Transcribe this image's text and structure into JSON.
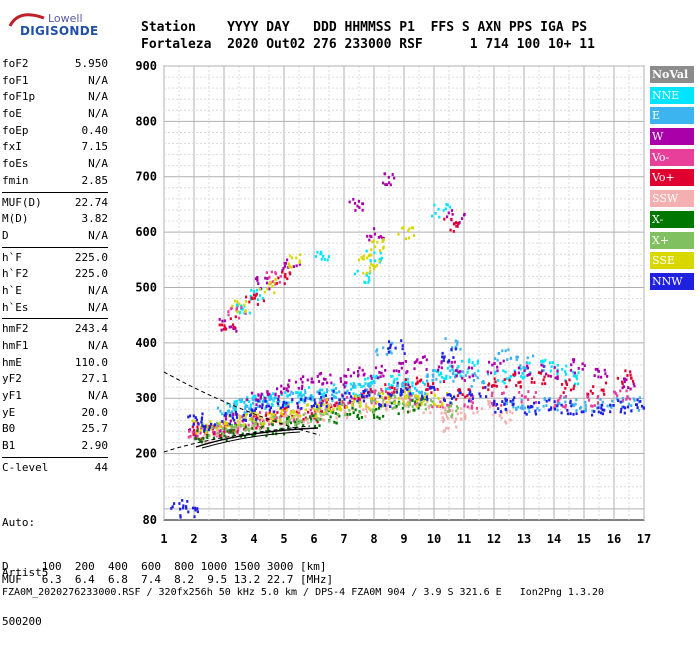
{
  "logo": {
    "line1": "Lowell",
    "line2": "DIGISONDE"
  },
  "header": {
    "row1": "Station    YYYY DAY   DDD HHMMSS P1  FFS S AXN PPS IGA PS",
    "row2": "Fortaleza  2020 Out02 276 233000 RSF      1 714 100 10+ 11"
  },
  "params": [
    {
      "label": "foF2",
      "value": "5.950"
    },
    {
      "label": "foF1",
      "value": "N/A"
    },
    {
      "label": "foF1p",
      "value": "N/A"
    },
    {
      "label": "foE",
      "value": "N/A"
    },
    {
      "label": "foEp",
      "value": "0.40"
    },
    {
      "label": "fxI",
      "value": "7.15"
    },
    {
      "label": "foEs",
      "value": "N/A"
    },
    {
      "label": "fmin",
      "value": "2.85"
    },
    {
      "label": "MUF(D)",
      "value": "22.74"
    },
    {
      "label": "M(D)",
      "value": "3.82"
    },
    {
      "label": "D",
      "value": "N/A"
    },
    {
      "label": "h`F",
      "value": "225.0"
    },
    {
      "label": "h`F2",
      "value": "225.0"
    },
    {
      "label": "h`E",
      "value": "N/A"
    },
    {
      "label": "h`Es",
      "value": "N/A"
    },
    {
      "label": "hmF2",
      "value": "243.4"
    },
    {
      "label": "hmF1",
      "value": "N/A"
    },
    {
      "label": "hmE",
      "value": "110.0"
    },
    {
      "label": "yF2",
      "value": "27.1"
    },
    {
      "label": "yF1",
      "value": "N/A"
    },
    {
      "label": "yE",
      "value": "20.0"
    },
    {
      "label": "B0",
      "value": "25.7"
    },
    {
      "label": "B1",
      "value": "2.90"
    },
    {
      "label": "C-level",
      "value": "44"
    }
  ],
  "auto": [
    "Auto:",
    "Artist5",
    "500200"
  ],
  "legend": [
    {
      "label": "NoVal",
      "color": "#8c8c8c"
    },
    {
      "label": "NNE",
      "color": "#00e5ff"
    },
    {
      "label": "E",
      "color": "#3cb4f0"
    },
    {
      "label": "W",
      "color": "#aa00aa"
    },
    {
      "label": "Vo-",
      "color": "#e8409a"
    },
    {
      "label": "Vo+",
      "color": "#e00030"
    },
    {
      "label": "SSW",
      "color": "#f4b0b0"
    },
    {
      "label": "X-",
      "color": "#007800"
    },
    {
      "label": "X+",
      "color": "#80c060"
    },
    {
      "label": "SSE",
      "color": "#d8d800"
    },
    {
      "label": "NNW",
      "color": "#2020e0"
    }
  ],
  "footer": {
    "row1": "D     100  200  400  600  800 1000 1500 3000 [km]",
    "row2": "MUF   6.3  6.4  6.8  7.4  8.2  9.5 13.2 22.7 [MHz]",
    "row3": "FZA0M_2020276233000.RSF / 320fx256h 50 kHz 5.0 km / DPS-4 FZA0M 904 / 3.9 S 321.6 E   Ion2Png 1.3.20"
  },
  "chart_data": {
    "type": "scatter",
    "x_ticks": [
      1,
      2,
      3,
      4,
      5,
      6,
      7,
      8,
      9,
      10,
      11,
      12,
      13,
      14,
      15,
      16,
      17
    ],
    "y_ticks": [
      80,
      200,
      300,
      400,
      500,
      600,
      700,
      800,
      900
    ],
    "xlim": [
      1,
      17
    ],
    "ylim": [
      80,
      900
    ],
    "grid": true,
    "legend_position": "right",
    "series": [
      {
        "name": "NNE",
        "color": "#00e5ff",
        "points": [
          [
            3.2,
            285
          ],
          [
            3.6,
            292
          ],
          [
            4.0,
            298
          ],
          [
            4.4,
            301
          ],
          [
            4.8,
            300
          ],
          [
            5.3,
            306
          ],
          [
            5.8,
            310
          ],
          [
            6.4,
            315
          ],
          [
            7.2,
            320
          ],
          [
            7.8,
            330
          ],
          [
            8.3,
            330
          ],
          [
            8.8,
            335
          ],
          [
            9.3,
            320
          ],
          [
            10.1,
            350
          ],
          [
            10.6,
            350
          ],
          [
            11.2,
            360
          ],
          [
            12.2,
            340
          ],
          [
            12.8,
            345
          ],
          [
            13.4,
            360
          ],
          [
            14.1,
            355
          ],
          [
            14.6,
            340
          ],
          [
            10.2,
            640
          ],
          [
            8.0,
            560
          ],
          [
            7.6,
            520
          ],
          [
            6.2,
            560
          ],
          [
            3.6,
            460
          ],
          [
            4.1,
            490
          ]
        ]
      },
      {
        "name": "E",
        "color": "#3cb4f0",
        "points": [
          [
            3.0,
            280
          ],
          [
            3.6,
            288
          ],
          [
            4.2,
            295
          ],
          [
            4.8,
            298
          ],
          [
            5.4,
            302
          ],
          [
            6.0,
            305
          ],
          [
            6.6,
            310
          ],
          [
            7.3,
            315
          ],
          [
            8.0,
            318
          ],
          [
            8.7,
            322
          ],
          [
            9.4,
            315
          ],
          [
            10.0,
            340
          ],
          [
            10.8,
            345
          ],
          [
            11.5,
            335
          ],
          [
            12.6,
            290
          ],
          [
            13.2,
            285
          ],
          [
            13.9,
            290
          ],
          [
            14.6,
            292
          ],
          [
            15.3,
            288
          ],
          [
            16.0,
            290
          ],
          [
            16.6,
            292
          ],
          [
            8.3,
            390
          ],
          [
            10.6,
            400
          ],
          [
            12.3,
            380
          ],
          [
            13.0,
            370
          ]
        ]
      },
      {
        "name": "W",
        "color": "#aa00aa",
        "points": [
          [
            2.1,
            245
          ],
          [
            2.7,
            252
          ],
          [
            3.3,
            262
          ],
          [
            3.9,
            300
          ],
          [
            4.5,
            310
          ],
          [
            5.1,
            322
          ],
          [
            5.6,
            330
          ],
          [
            6.2,
            340
          ],
          [
            6.8,
            335
          ],
          [
            7.4,
            345
          ],
          [
            8.1,
            350
          ],
          [
            8.8,
            360
          ],
          [
            9.6,
            365
          ],
          [
            10.4,
            365
          ],
          [
            11.0,
            345
          ],
          [
            12.0,
            360
          ],
          [
            12.9,
            355
          ],
          [
            13.8,
            350
          ],
          [
            14.8,
            360
          ],
          [
            15.6,
            345
          ],
          [
            16.5,
            330
          ],
          [
            3.1,
            435
          ],
          [
            4.2,
            510
          ],
          [
            5.2,
            540
          ],
          [
            8.0,
            600
          ],
          [
            10.7,
            630
          ],
          [
            7.4,
            650
          ],
          [
            8.4,
            700
          ]
        ]
      },
      {
        "name": "Vo-",
        "color": "#e8409a",
        "points": [
          [
            2.0,
            238
          ],
          [
            2.6,
            245
          ],
          [
            3.2,
            250
          ],
          [
            3.8,
            258
          ],
          [
            4.4,
            265
          ],
          [
            5.0,
            270
          ],
          [
            5.7,
            280
          ],
          [
            6.4,
            290
          ],
          [
            7.0,
            300
          ],
          [
            7.8,
            305
          ],
          [
            8.5,
            310
          ],
          [
            9.2,
            300
          ],
          [
            10.2,
            290
          ],
          [
            11.1,
            295
          ],
          [
            12.1,
            300
          ],
          [
            13.1,
            305
          ],
          [
            14.2,
            295
          ],
          [
            15.2,
            300
          ],
          [
            16.2,
            305
          ],
          [
            3.4,
            455
          ],
          [
            4.6,
            520
          ]
        ]
      },
      {
        "name": "Vo+",
        "color": "#e00030",
        "points": [
          [
            2.2,
            240
          ],
          [
            2.8,
            244
          ],
          [
            3.4,
            252
          ],
          [
            4.0,
            260
          ],
          [
            4.6,
            268
          ],
          [
            5.2,
            275
          ],
          [
            5.9,
            270
          ],
          [
            6.5,
            285
          ],
          [
            7.2,
            295
          ],
          [
            7.9,
            308
          ],
          [
            8.6,
            315
          ],
          [
            9.3,
            330
          ],
          [
            10.0,
            325
          ],
          [
            10.9,
            310
          ],
          [
            11.8,
            330
          ],
          [
            12.6,
            335
          ],
          [
            13.5,
            340
          ],
          [
            14.4,
            325
          ],
          [
            15.4,
            320
          ],
          [
            16.3,
            340
          ],
          [
            3.1,
            437
          ],
          [
            4.0,
            480
          ],
          [
            5.0,
            520
          ],
          [
            10.6,
            615
          ]
        ]
      },
      {
        "name": "SSW",
        "color": "#f4b0b0",
        "points": [
          [
            2.4,
            235
          ],
          [
            3.0,
            242
          ],
          [
            3.6,
            248
          ],
          [
            4.2,
            255
          ],
          [
            4.9,
            262
          ],
          [
            5.5,
            268
          ],
          [
            6.1,
            272
          ],
          [
            6.8,
            278
          ],
          [
            7.5,
            282
          ],
          [
            8.2,
            285
          ],
          [
            8.9,
            290
          ],
          [
            9.6,
            285
          ],
          [
            10.3,
            272
          ],
          [
            11.0,
            275
          ],
          [
            11.7,
            285
          ],
          [
            10.5,
            255
          ],
          [
            12.4,
            270
          ]
        ]
      },
      {
        "name": "X-",
        "color": "#007800",
        "points": [
          [
            2.3,
            232
          ],
          [
            2.9,
            238
          ],
          [
            3.5,
            242
          ],
          [
            4.1,
            246
          ],
          [
            4.7,
            250
          ],
          [
            5.3,
            256
          ],
          [
            5.9,
            262
          ],
          [
            6.6,
            268
          ],
          [
            7.3,
            274
          ],
          [
            8.1,
            278
          ],
          [
            8.8,
            284
          ],
          [
            9.5,
            290
          ]
        ]
      },
      {
        "name": "X+",
        "color": "#80c060",
        "points": [
          [
            2.5,
            246
          ],
          [
            3.1,
            250
          ],
          [
            3.7,
            254
          ],
          [
            4.3,
            258
          ],
          [
            4.9,
            262
          ],
          [
            5.6,
            266
          ],
          [
            6.3,
            272
          ],
          [
            7.0,
            280
          ],
          [
            7.7,
            286
          ],
          [
            8.4,
            296
          ],
          [
            9.1,
            300
          ],
          [
            9.8,
            295
          ],
          [
            10.5,
            280
          ]
        ]
      },
      {
        "name": "SSE",
        "color": "#d8d800",
        "points": [
          [
            2.2,
            250
          ],
          [
            2.8,
            256
          ],
          [
            3.4,
            262
          ],
          [
            4.0,
            268
          ],
          [
            4.6,
            272
          ],
          [
            5.2,
            278
          ],
          [
            5.8,
            282
          ],
          [
            6.4,
            288
          ],
          [
            7.0,
            292
          ],
          [
            7.6,
            296
          ],
          [
            8.2,
            300
          ],
          [
            8.9,
            304
          ],
          [
            9.5,
            298
          ],
          [
            10.2,
            300
          ],
          [
            3.5,
            470
          ],
          [
            4.4,
            505
          ],
          [
            5.4,
            550
          ],
          [
            7.7,
            560
          ],
          [
            8.2,
            580
          ],
          [
            7.9,
            540
          ],
          [
            9.0,
            600
          ]
        ]
      },
      {
        "name": "NNW",
        "color": "#2020e0",
        "points": [
          [
            2.0,
            262
          ],
          [
            2.5,
            255
          ],
          [
            3.1,
            265
          ],
          [
            3.8,
            275
          ],
          [
            4.4,
            285
          ],
          [
            5.0,
            290
          ],
          [
            5.7,
            295
          ],
          [
            6.3,
            300
          ],
          [
            6.9,
            305
          ],
          [
            7.6,
            310
          ],
          [
            8.3,
            300
          ],
          [
            9.0,
            320
          ],
          [
            9.8,
            310
          ],
          [
            10.6,
            305
          ],
          [
            11.4,
            310
          ],
          [
            12.1,
            285
          ],
          [
            12.6,
            292
          ],
          [
            13.3,
            285
          ],
          [
            14.0,
            288
          ],
          [
            14.7,
            285
          ],
          [
            15.4,
            283
          ],
          [
            16.1,
            287
          ],
          [
            16.7,
            290
          ],
          [
            10.4,
            380
          ],
          [
            8.7,
            395
          ],
          [
            1.5,
            110
          ],
          [
            1.8,
            100
          ]
        ]
      }
    ]
  }
}
